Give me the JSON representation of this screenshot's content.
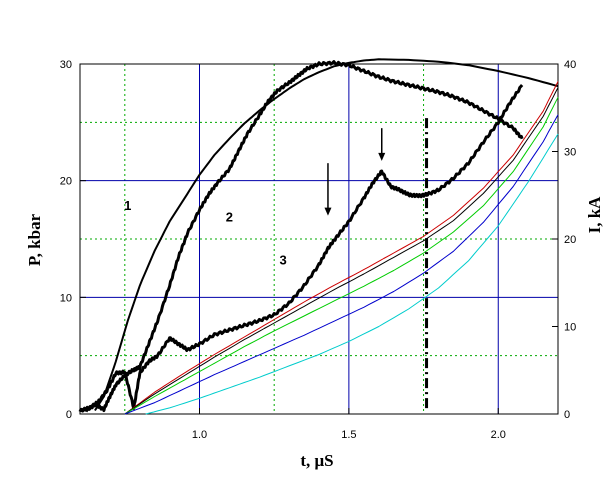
{
  "chart_data": {
    "type": "line",
    "xlabel": "t,  μS",
    "ylabel_left": "P, kbar",
    "ylabel_right": "I, kA",
    "xlim": [
      0.6,
      2.2
    ],
    "ylim_left": [
      0,
      30
    ],
    "ylim_right": [
      0,
      40
    ],
    "x_ticks": [
      "1.0",
      "1.5",
      "2.0"
    ],
    "x_tick_values": [
      1.0,
      1.5,
      2.0
    ],
    "y_left_ticks": [
      "0",
      "10",
      "20",
      "30"
    ],
    "y_left_tick_values": [
      0,
      10,
      20,
      30
    ],
    "y_right_ticks": [
      "0",
      "10",
      "20",
      "30",
      "40"
    ],
    "y_right_tick_values": [
      0,
      10,
      20,
      30,
      40
    ],
    "grid": {
      "major_color": "#0000aa",
      "minor_color": "#00aa00",
      "major_x": [
        1.0,
        1.5,
        2.0
      ],
      "major_y": [
        10,
        20
      ],
      "minor_x": [
        0.75,
        1.25,
        1.75
      ],
      "minor_y": [
        5,
        15,
        25
      ]
    },
    "curve_labels": [
      {
        "text": "1",
        "x": 0.76,
        "y": 17.5
      },
      {
        "text": "2",
        "x": 1.1,
        "y": 16.5
      },
      {
        "text": "3",
        "x": 1.28,
        "y": 12.8
      }
    ],
    "markers": [
      {
        "type": "arrow",
        "x": 1.43,
        "y_from": 21.5,
        "y_to": 17
      },
      {
        "type": "arrow",
        "x": 1.61,
        "y_from": 24.5,
        "y_to": 21.7
      },
      {
        "type": "dash-dot-vline",
        "x": 1.76,
        "y_from": 0.5,
        "y_to": 25.5
      }
    ],
    "series": [
      {
        "label": "1",
        "axis": "left",
        "color": "#000000",
        "width": 2,
        "noisy": false,
        "x": [
          0.65,
          0.68,
          0.72,
          0.76,
          0.8,
          0.85,
          0.9,
          0.95,
          1.0,
          1.05,
          1.1,
          1.15,
          1.2,
          1.25,
          1.3,
          1.35,
          1.4,
          1.45,
          1.5,
          1.55,
          1.6,
          1.7,
          1.8,
          1.9,
          2.0,
          2.1,
          2.2
        ],
        "y": [
          0.3,
          1.5,
          4.5,
          8,
          11,
          14,
          16.5,
          18.5,
          20.5,
          22.2,
          23.6,
          24.9,
          26,
          27,
          27.9,
          28.7,
          29.3,
          29.8,
          30.1,
          30.3,
          30.4,
          30.35,
          30.2,
          29.9,
          29.4,
          28.8,
          28.1
        ]
      },
      {
        "label": "2",
        "axis": "left",
        "color": "#000000",
        "width": 3,
        "noisy": true,
        "x": [
          0.62,
          0.65,
          0.68,
          0.7,
          0.72,
          0.75,
          0.78,
          0.8,
          0.83,
          0.86,
          0.9,
          0.93,
          0.96,
          1.0,
          1.03,
          1.06,
          1.1,
          1.13,
          1.16,
          1.2,
          1.23,
          1.26,
          1.3,
          1.33,
          1.36,
          1.4,
          1.45,
          1.5,
          1.55,
          1.6,
          1.65,
          1.7,
          1.75,
          1.8,
          1.85,
          1.9,
          1.95,
          2.0,
          2.05,
          2.08
        ],
        "y": [
          0.3,
          0.8,
          0.4,
          1.5,
          2.5,
          3.3,
          3.8,
          4,
          6,
          8,
          11,
          13.5,
          15.5,
          17.5,
          18.8,
          19.8,
          21,
          22.5,
          24,
          25.6,
          26.8,
          27.7,
          28.4,
          29,
          29.6,
          30,
          30.1,
          29.9,
          29.4,
          28.9,
          28.5,
          28.2,
          27.9,
          27.6,
          27.2,
          26.7,
          26,
          25.3,
          24.5,
          23.6
        ]
      },
      {
        "label": "3",
        "axis": "left",
        "color": "#000000",
        "width": 3,
        "noisy": true,
        "x": [
          0.6,
          0.63,
          0.66,
          0.69,
          0.72,
          0.75,
          0.78,
          0.8,
          0.83,
          0.86,
          0.9,
          0.93,
          0.96,
          1.0,
          1.05,
          1.1,
          1.15,
          1.2,
          1.25,
          1.3,
          1.35,
          1.4,
          1.43,
          1.46,
          1.5,
          1.55,
          1.58,
          1.61,
          1.64,
          1.67,
          1.7,
          1.73,
          1.76,
          1.8,
          1.85,
          1.9,
          1.95,
          2.0,
          2.04,
          2.08
        ],
        "y": [
          0.3,
          0.5,
          1,
          2,
          3.5,
          3.6,
          0.5,
          3.5,
          4.5,
          5,
          6.5,
          6,
          5.5,
          6,
          6.8,
          7.2,
          7.6,
          8,
          8.5,
          9.5,
          11,
          12.8,
          14.2,
          15.2,
          16.5,
          18.5,
          19.8,
          20.8,
          19.5,
          19.2,
          18.8,
          18.7,
          18.8,
          19.2,
          20.2,
          21.5,
          23.3,
          25,
          26.7,
          28.2
        ]
      },
      {
        "label": "",
        "axis": "right",
        "color": "#cc0000",
        "width": 1,
        "noisy": false,
        "x": [
          0.75,
          0.85,
          0.95,
          1.05,
          1.15,
          1.25,
          1.35,
          1.45,
          1.55,
          1.65,
          1.75,
          1.85,
          1.95,
          2.05,
          2.15,
          2.2
        ],
        "y": [
          0,
          2.5,
          4.7,
          6.8,
          8.8,
          10.8,
          12.8,
          14.7,
          16.5,
          18.4,
          20.3,
          22.7,
          25.8,
          29.6,
          34.6,
          38
        ]
      },
      {
        "label": "",
        "axis": "right",
        "color": "#000000",
        "width": 1,
        "noisy": false,
        "x": [
          0.75,
          0.85,
          0.95,
          1.05,
          1.15,
          1.25,
          1.35,
          1.45,
          1.55,
          1.65,
          1.75,
          1.85,
          1.95,
          2.05,
          2.15,
          2.2
        ],
        "y": [
          0,
          2.3,
          4.4,
          6.5,
          8.5,
          10.4,
          12.3,
          14.2,
          16,
          17.9,
          19.8,
          22.1,
          25.2,
          29,
          34,
          37.3
        ]
      },
      {
        "label": "",
        "axis": "right",
        "color": "#00cc00",
        "width": 1,
        "noisy": false,
        "x": [
          0.75,
          0.85,
          0.95,
          1.05,
          1.15,
          1.25,
          1.35,
          1.45,
          1.55,
          1.65,
          1.75,
          1.85,
          1.95,
          2.05,
          2.15,
          2.2
        ],
        "y": [
          0,
          2,
          3.9,
          5.8,
          7.7,
          9.5,
          11.2,
          12.9,
          14.6,
          16.4,
          18.4,
          20.8,
          23.8,
          27.7,
          32.8,
          36.2
        ]
      },
      {
        "label": "",
        "axis": "right",
        "color": "#0000cc",
        "width": 1,
        "noisy": false,
        "x": [
          0.75,
          0.85,
          0.95,
          1.05,
          1.15,
          1.25,
          1.35,
          1.45,
          1.55,
          1.65,
          1.75,
          1.85,
          1.95,
          2.05,
          2.15,
          2.2
        ],
        "y": [
          0,
          1.3,
          2.9,
          4.5,
          6,
          7.5,
          9,
          10.6,
          12.2,
          14,
          16.1,
          18.6,
          21.9,
          26,
          31.1,
          34.2
        ]
      },
      {
        "label": "",
        "axis": "right",
        "color": "#00cccc",
        "width": 1,
        "noisy": false,
        "x": [
          0.82,
          0.9,
          1.0,
          1.1,
          1.2,
          1.3,
          1.4,
          1.5,
          1.6,
          1.7,
          1.8,
          1.9,
          2.0,
          2.1,
          2.2
        ],
        "y": [
          0,
          0.7,
          1.8,
          3,
          4.2,
          5.5,
          6.8,
          8.3,
          10,
          12,
          14.4,
          17.5,
          21.5,
          26.5,
          32
        ]
      }
    ]
  }
}
